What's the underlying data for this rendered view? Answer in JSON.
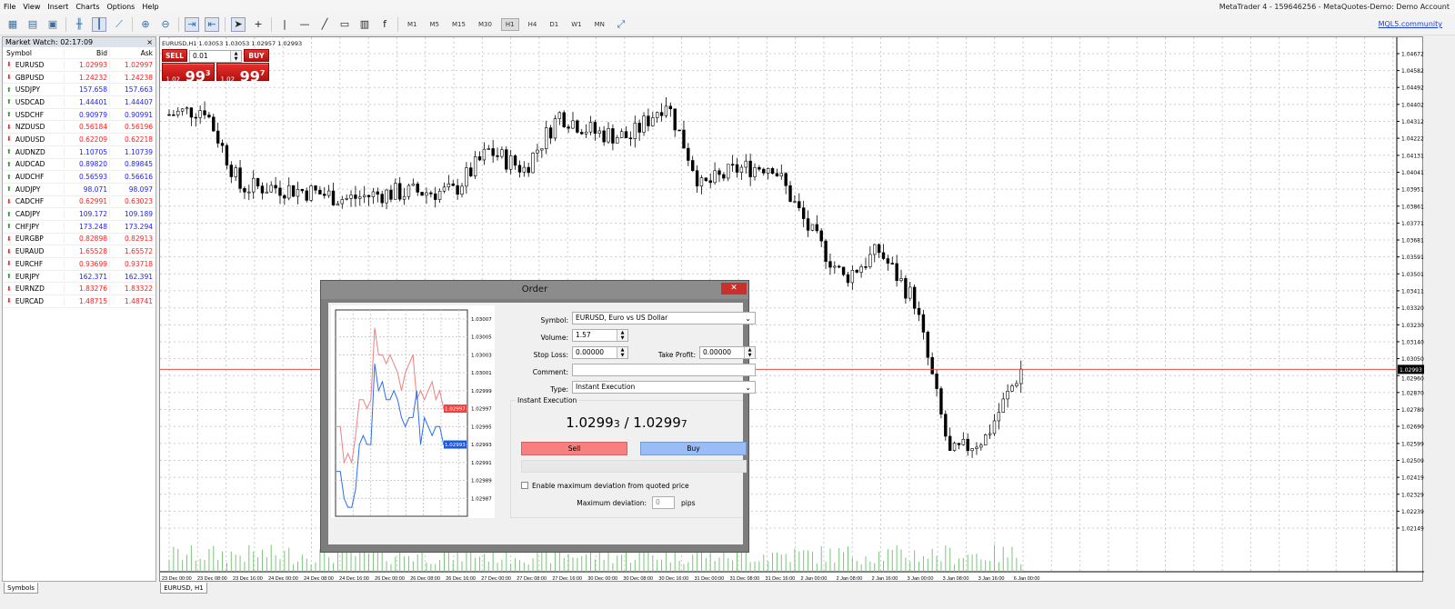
{
  "menu": [
    "File",
    "View",
    "Insert",
    "Charts",
    "Options",
    "Help"
  ],
  "window_title": "MetaTrader 4 - 159646256 - MetaQuotes-Demo: Demo Account",
  "toolbar": {
    "timeframes": [
      "M1",
      "M5",
      "M15",
      "M30",
      "H1",
      "H4",
      "D1",
      "W1",
      "MN"
    ],
    "active_timeframe": "H1",
    "community_link": "MQL5.community"
  },
  "market_watch": {
    "title": "Market Watch: 02:17:09",
    "columns": [
      "Symbol",
      "Bid",
      "Ask"
    ],
    "rows": [
      {
        "symbol": "EURUSD",
        "bid": "1.02993",
        "ask": "1.02997",
        "dir": "down"
      },
      {
        "symbol": "GBPUSD",
        "bid": "1.24232",
        "ask": "1.24238",
        "dir": "down"
      },
      {
        "symbol": "USDJPY",
        "bid": "157.658",
        "ask": "157.663",
        "dir": "up"
      },
      {
        "symbol": "USDCAD",
        "bid": "1.44401",
        "ask": "1.44407",
        "dir": "up"
      },
      {
        "symbol": "USDCHF",
        "bid": "0.90979",
        "ask": "0.90991",
        "dir": "up"
      },
      {
        "symbol": "NZDUSD",
        "bid": "0.56184",
        "ask": "0.56196",
        "dir": "down"
      },
      {
        "symbol": "AUDUSD",
        "bid": "0.62209",
        "ask": "0.62218",
        "dir": "down"
      },
      {
        "symbol": "AUDNZD",
        "bid": "1.10705",
        "ask": "1.10739",
        "dir": "up"
      },
      {
        "symbol": "AUDCAD",
        "bid": "0.89820",
        "ask": "0.89845",
        "dir": "up"
      },
      {
        "symbol": "AUDCHF",
        "bid": "0.56593",
        "ask": "0.56616",
        "dir": "up"
      },
      {
        "symbol": "AUDJPY",
        "bid": "98.071",
        "ask": "98.097",
        "dir": "up"
      },
      {
        "symbol": "CADCHF",
        "bid": "0.62991",
        "ask": "0.63023",
        "dir": "down"
      },
      {
        "symbol": "CADJPY",
        "bid": "109.172",
        "ask": "109.189",
        "dir": "up"
      },
      {
        "symbol": "CHFJPY",
        "bid": "173.248",
        "ask": "173.294",
        "dir": "up"
      },
      {
        "symbol": "EURGBP",
        "bid": "0.82898",
        "ask": "0.82913",
        "dir": "down"
      },
      {
        "symbol": "EURAUD",
        "bid": "1.65528",
        "ask": "1.65572",
        "dir": "down"
      },
      {
        "symbol": "EURCHF",
        "bid": "0.93699",
        "ask": "0.93718",
        "dir": "down"
      },
      {
        "symbol": "EURJPY",
        "bid": "162.371",
        "ask": "162.391",
        "dir": "up"
      },
      {
        "symbol": "EURNZD",
        "bid": "1.83276",
        "ask": "1.83322",
        "dir": "down"
      },
      {
        "symbol": "EURCAD",
        "bid": "1.48715",
        "ask": "1.48741",
        "dir": "down"
      }
    ],
    "tab": "Symbols"
  },
  "colors": {
    "down": "#ff2020",
    "up": "#2020ff",
    "up_icon": "#2a9a2a",
    "current_price": "#e05050",
    "volume": "#3aa03a"
  },
  "chart": {
    "info": "EURUSD,H1  1.03053 1.03053 1.02957 1.02993",
    "tab": "EURUSD, H1",
    "one_click": {
      "sell": "SELL",
      "buy": "BUY",
      "lot": "0.01",
      "sell_prefix": "1.02",
      "sell_big": "99",
      "sell_sup": "3",
      "buy_prefix": "1.02",
      "buy_big": "99",
      "buy_sup": "7"
    }
  },
  "chart_data": {
    "type": "candlestick",
    "symbol": "EURUSD",
    "timeframe": "H1",
    "price_ticks": [
      "1.04672",
      "1.04582",
      "1.04492",
      "1.04402",
      "1.04312",
      "1.04222",
      "1.04131",
      "1.04041",
      "1.03951",
      "1.03861",
      "1.03771",
      "1.03681",
      "1.03591",
      "1.03501",
      "1.03411",
      "1.03320",
      "1.03230",
      "1.03140",
      "1.03050",
      "1.02960",
      "1.02870",
      "1.02780",
      "1.02690",
      "1.02599",
      "1.02509",
      "1.02419",
      "1.02329",
      "1.02239",
      "1.02149"
    ],
    "ylim": [
      1.02149,
      1.04672
    ],
    "current_price": "1.02993",
    "time_ticks": [
      "23 Dec 00:00",
      "23 Dec 08:00",
      "23 Dec 16:00",
      "24 Dec 00:00",
      "24 Dec 08:00",
      "24 Dec 16:00",
      "26 Dec 00:00",
      "26 Dec 08:00",
      "26 Dec 16:00",
      "27 Dec 00:00",
      "27 Dec 08:00",
      "27 Dec 16:00",
      "30 Dec 00:00",
      "30 Dec 08:00",
      "30 Dec 16:00",
      "31 Dec 00:00",
      "31 Dec 08:00",
      "31 Dec 16:00",
      "2 Jan 00:00",
      "2 Jan 08:00",
      "2 Jan 16:00",
      "3 Jan 00:00",
      "3 Jan 08:00",
      "3 Jan 16:00",
      "6 Jan 00:00"
    ],
    "approx_close_at_time_ticks": [
      1.04348,
      1.04382,
      1.03962,
      1.03962,
      1.03937,
      1.03899,
      1.03928,
      1.03937,
      1.03937,
      1.04155,
      1.04058,
      1.04348,
      1.04252,
      1.04227,
      1.04421,
      1.03962,
      1.04058,
      1.04082,
      1.03744,
      1.03478,
      1.03623,
      1.03357,
      1.02536,
      1.02632,
      1.02993
    ],
    "grid": true,
    "volumes": true
  },
  "order_dialog": {
    "title": "Order",
    "symbol_label": "Symbol:",
    "symbol_value": "EURUSD, Euro vs US Dollar",
    "volume_label": "Volume:",
    "volume_value": "1.57",
    "sl_label": "Stop Loss:",
    "sl_value": "0.00000",
    "tp_label": "Take Profit:",
    "tp_value": "0.00000",
    "comment_label": "Comment:",
    "comment_value": "",
    "type_label": "Type:",
    "type_value": "Instant Execution",
    "section": "Instant Execution",
    "bid_main": "1.0299",
    "bid_last": "3",
    "ask_main": "1.0299",
    "ask_last": "7",
    "sep": " / ",
    "sell": "Sell",
    "buy": "Buy",
    "deviation_checkbox": "Enable maximum deviation from quoted price",
    "deviation_checked": false,
    "max_dev_label": "Maximum deviation:",
    "max_dev_value": "0",
    "pips": "pips",
    "tick_chart": {
      "type": "line",
      "yticks": [
        "1.03007",
        "1.03005",
        "1.03003",
        "1.03001",
        "1.02999",
        "1.02997",
        "1.02995",
        "1.02993",
        "1.02991",
        "1.02989",
        "1.02987"
      ],
      "ylim": [
        1.02985,
        1.03008
      ],
      "bid": [
        1.0299,
        1.0299,
        1.02987,
        1.02986,
        1.02986,
        1.02988,
        1.02993,
        1.02994,
        1.02993,
        1.02993,
        1.03002,
        1.02999,
        1.03,
        1.02998,
        1.02998,
        1.02999,
        1.02998,
        1.02996,
        1.02995,
        1.02996,
        1.02996,
        1.02999,
        1.02993,
        1.02996,
        1.02995,
        1.02994,
        1.02995,
        1.02995,
        1.02993,
        1.02993,
        1.02993,
        1.02993,
        1.02993,
        1.02993,
        1.02993
      ],
      "ask": [
        1.02995,
        1.02995,
        1.02991,
        1.02992,
        1.02991,
        1.02994,
        1.02998,
        1.02998,
        1.02997,
        1.02998,
        1.03006,
        1.03003,
        1.03003,
        1.03002,
        1.03003,
        1.03002,
        1.03001,
        1.02999,
        1.03001,
        1.03002,
        1.03003,
        1.02998,
        1.02999,
        1.02998,
        1.02999,
        1.03,
        1.02998,
        1.02999,
        1.02997,
        1.02997,
        1.02997,
        1.02997,
        1.02997,
        1.02997,
        1.02997
      ],
      "bid_label": "1.02993",
      "ask_label": "1.02997"
    }
  }
}
